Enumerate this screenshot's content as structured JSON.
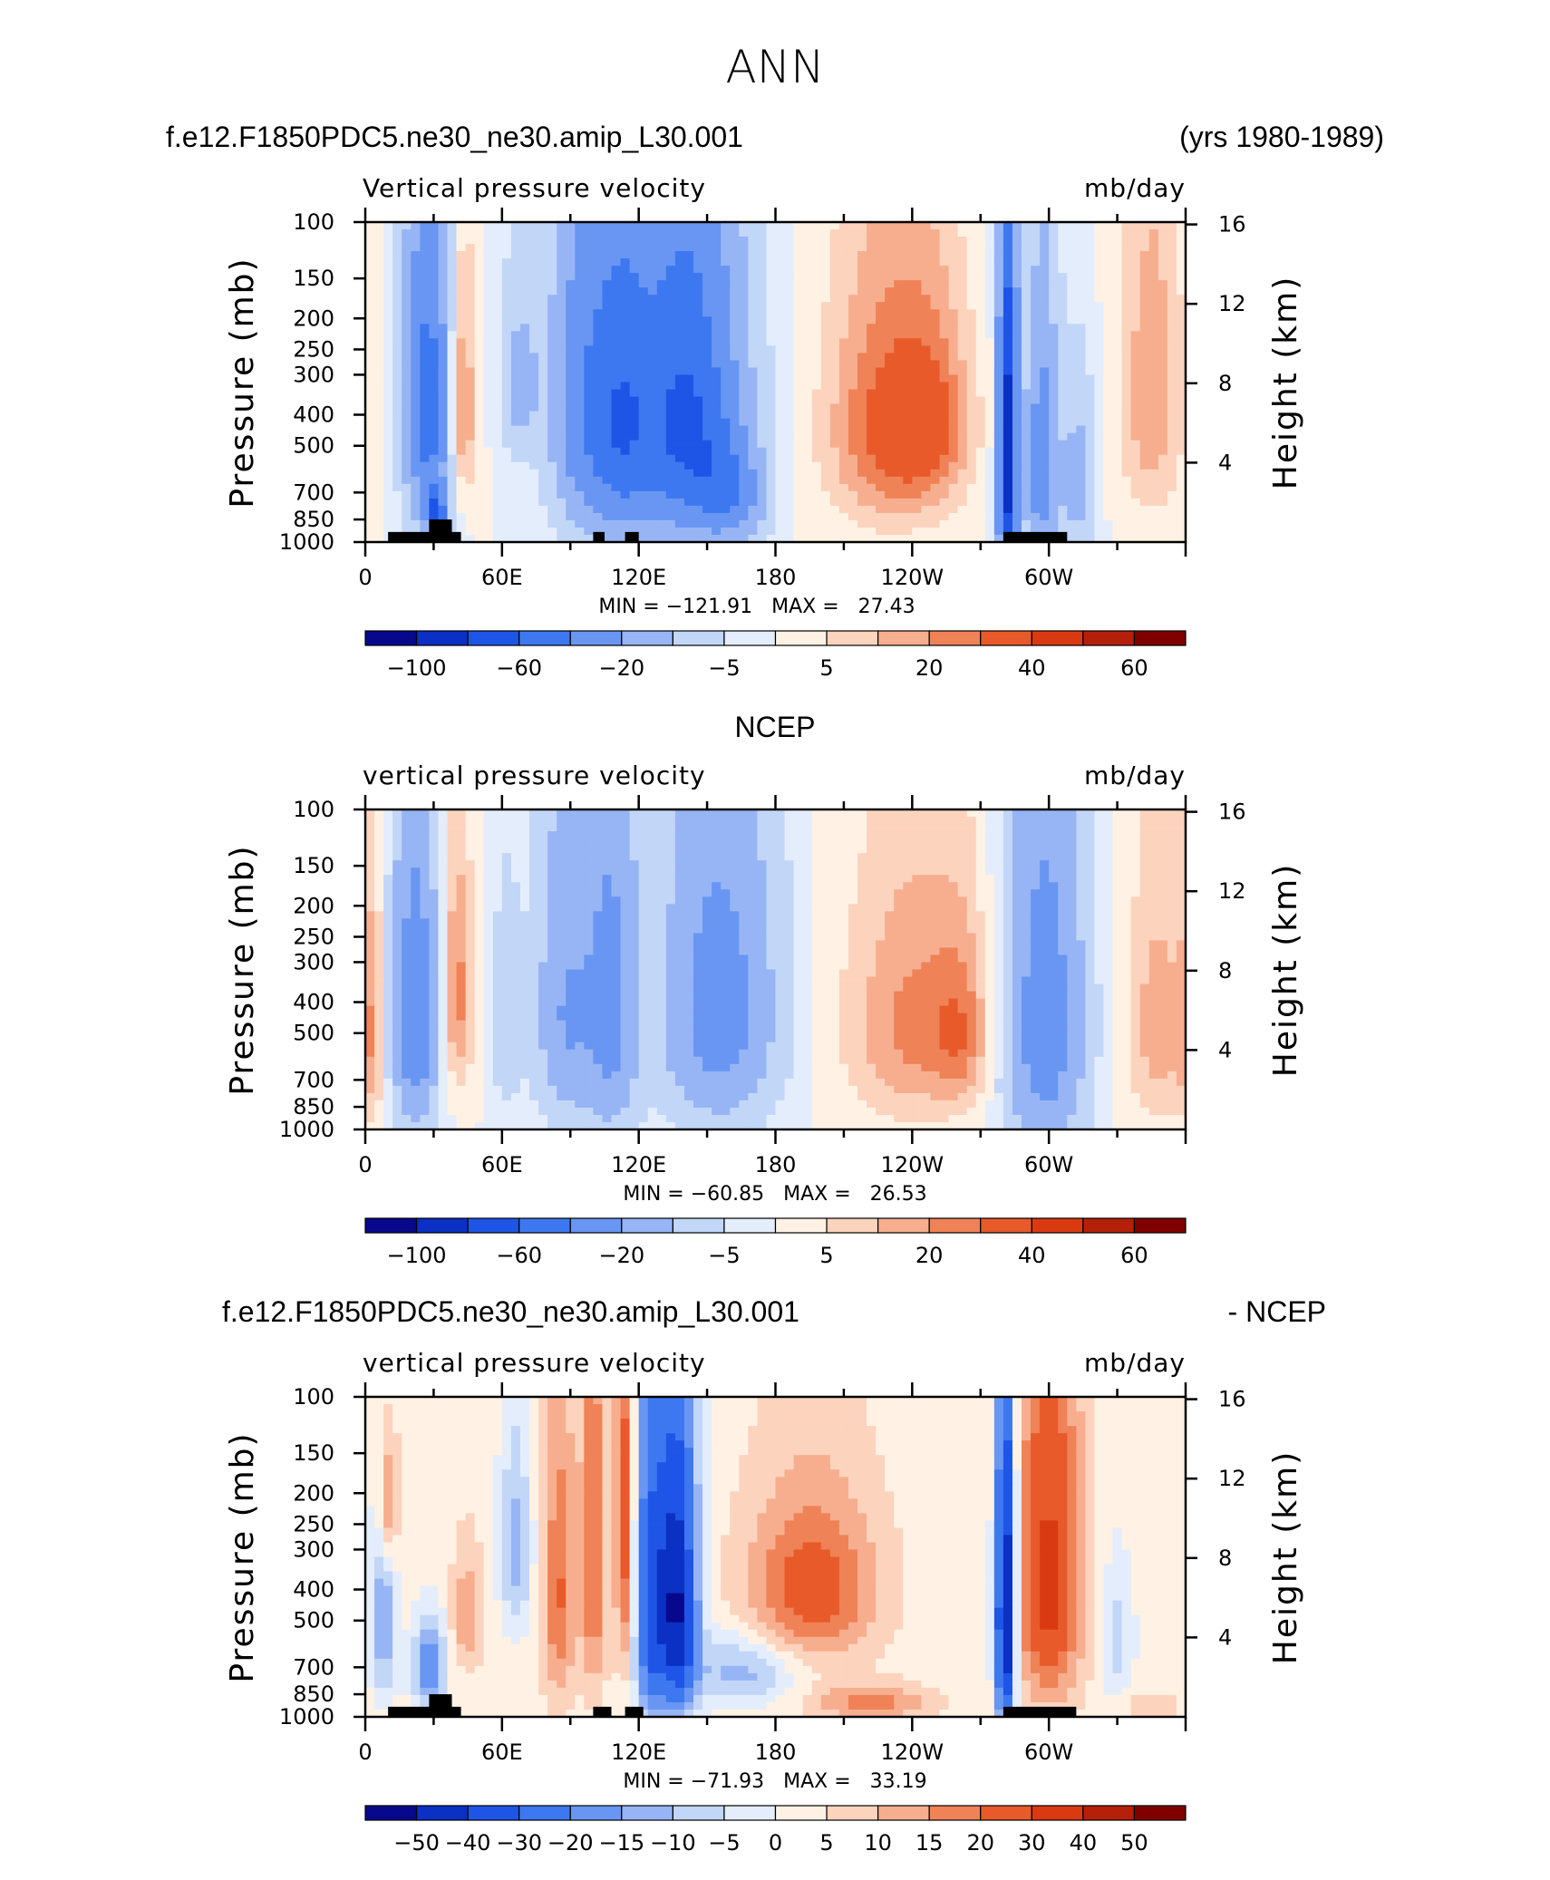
{
  "page": {
    "title": "ANN"
  },
  "colors": {
    "scale": [
      "#08088c",
      "#0a30c4",
      "#1e55e6",
      "#3d78f0",
      "#6896f2",
      "#97b5f4",
      "#c2d6f8",
      "#e4edfb",
      "#fff2e4",
      "#fcd3bd",
      "#f6ae8f",
      "#ef8256",
      "#e85a2a",
      "#d93a12",
      "#b5200a",
      "#800000"
    ]
  },
  "chart_data": [
    {
      "type": "heatmap",
      "name": "panel-model",
      "header_left": "f.e12.F1850PDC5.ne30_ne30.amip_L30.001",
      "header_right": "(yrs 1980-1989)",
      "subtitle_left": "Vertical pressure velocity",
      "subtitle_right": "mb/day",
      "ylabel": "Pressure (mb)",
      "ylabel_right": "Height (km)",
      "x_ticks": [
        "0",
        "60E",
        "120E",
        "180",
        "120W",
        "60W"
      ],
      "y_ticks": [
        "100",
        "150",
        "200",
        "250",
        "300",
        "400",
        "500",
        "700",
        "850",
        "1000"
      ],
      "y_right_ticks": [
        "16",
        "12",
        "8",
        "4"
      ],
      "stats": "MIN = −121.91   MAX =   27.43",
      "colorbar_labels": [
        "−100",
        "−60",
        "−20",
        "−5",
        "5",
        "20",
        "40",
        "60"
      ],
      "min": -121.91,
      "max": 27.43,
      "terrain": [
        [
          10,
          42,
          "low"
        ],
        [
          28,
          38,
          "high"
        ],
        [
          100,
          105,
          "low"
        ],
        [
          114,
          120,
          "low"
        ],
        [
          280,
          308,
          "low"
        ]
      ],
      "features": [
        {
          "lon": 28,
          "p": 380,
          "sw": 7,
          "sp": 320,
          "amp": -60
        },
        {
          "lon": 31,
          "p": 820,
          "sw": 3,
          "sp": 90,
          "amp": -60
        },
        {
          "lon": 41,
          "p": 380,
          "sw": 5,
          "sp": 220,
          "amp": 22
        },
        {
          "lon": 68,
          "p": 320,
          "sw": 6,
          "sp": 140,
          "amp": -20
        },
        {
          "lon": 95,
          "p": 380,
          "sw": 10,
          "sp": 330,
          "amp": -40
        },
        {
          "lon": 112,
          "p": 430,
          "sw": 9,
          "sp": 330,
          "amp": -45
        },
        {
          "lon": 140,
          "p": 420,
          "sw": 17,
          "sp": 330,
          "amp": -75
        },
        {
          "lon": 160,
          "p": 720,
          "sw": 10,
          "sp": 170,
          "amp": -35
        },
        {
          "lon": 232,
          "p": 440,
          "sw": 20,
          "sp": 280,
          "amp": 24
        },
        {
          "lon": 250,
          "p": 420,
          "sw": 10,
          "sp": 180,
          "amp": 10
        },
        {
          "lon": 282,
          "p": 560,
          "sw": 3,
          "sp": 420,
          "amp": -110
        },
        {
          "lon": 297,
          "p": 580,
          "sw": 5,
          "sp": 330,
          "amp": -45
        },
        {
          "lon": 313,
          "p": 650,
          "sw": 5,
          "sp": 260,
          "amp": -22
        },
        {
          "lon": 345,
          "p": 350,
          "sw": 10,
          "sp": 300,
          "amp": 14
        }
      ]
    },
    {
      "type": "heatmap",
      "name": "panel-ncep",
      "header_center": "NCEP",
      "subtitle_left": "vertical pressure velocity",
      "subtitle_right": "mb/day",
      "ylabel": "Pressure (mb)",
      "ylabel_right": "Height (km)",
      "x_ticks": [
        "0",
        "60E",
        "120E",
        "180",
        "120W",
        "60W"
      ],
      "y_ticks": [
        "100",
        "150",
        "200",
        "250",
        "300",
        "400",
        "500",
        "700",
        "850",
        "1000"
      ],
      "y_right_ticks": [
        "16",
        "12",
        "8",
        "4"
      ],
      "stats": "MIN = −60.85   MAX =   26.53",
      "colorbar_labels": [
        "−100",
        "−60",
        "−20",
        "−5",
        "5",
        "20",
        "40",
        "60"
      ],
      "min": -60.85,
      "max": 26.53,
      "terrain": [],
      "features": [
        {
          "lon": 3,
          "p": 500,
          "sw": 4,
          "sp": 300,
          "amp": 12
        },
        {
          "lon": 22,
          "p": 450,
          "sw": 7,
          "sp": 330,
          "amp": -45
        },
        {
          "lon": 40,
          "p": 380,
          "sw": 5,
          "sp": 230,
          "amp": 18
        },
        {
          "lon": 62,
          "p": 480,
          "sw": 5,
          "sp": 250,
          "amp": -12
        },
        {
          "lon": 88,
          "p": 430,
          "sw": 9,
          "sp": 320,
          "amp": -30
        },
        {
          "lon": 108,
          "p": 420,
          "sw": 8,
          "sp": 380,
          "amp": -35
        },
        {
          "lon": 155,
          "p": 420,
          "sw": 17,
          "sp": 330,
          "amp": -40
        },
        {
          "lon": 242,
          "p": 470,
          "sw": 22,
          "sp": 300,
          "amp": 17
        },
        {
          "lon": 262,
          "p": 500,
          "sw": 8,
          "sp": 200,
          "amp": 10
        },
        {
          "lon": 298,
          "p": 480,
          "sw": 12,
          "sp": 420,
          "amp": -42
        },
        {
          "lon": 348,
          "p": 480,
          "sw": 10,
          "sp": 320,
          "amp": 13
        }
      ]
    },
    {
      "type": "heatmap",
      "name": "panel-difference",
      "header_left": "f.e12.F1850PDC5.ne30_ne30.amip_L30.001",
      "header_right": "- NCEP",
      "subtitle_left": "vertical pressure velocity",
      "subtitle_right": "mb/day",
      "ylabel": "Pressure (mb)",
      "ylabel_right": "Height (km)",
      "x_ticks": [
        "0",
        "60E",
        "120E",
        "180",
        "120W",
        "60W"
      ],
      "y_ticks": [
        "100",
        "150",
        "200",
        "250",
        "300",
        "400",
        "500",
        "700",
        "850",
        "1000"
      ],
      "y_right_ticks": [
        "16",
        "12",
        "8",
        "4"
      ],
      "stats": "MIN = −71.93   MAX =   33.19",
      "colorbar_labels": [
        "−50",
        "−40",
        "−30",
        "−20",
        "−15",
        "−10",
        "−5",
        "0",
        "5",
        "10",
        "15",
        "20",
        "30",
        "40",
        "50"
      ],
      "min": -71.93,
      "max": 33.19,
      "terrain": [
        [
          10,
          42,
          "low"
        ],
        [
          28,
          38,
          "high"
        ],
        [
          100,
          108,
          "low"
        ],
        [
          114,
          122,
          "low"
        ],
        [
          280,
          312,
          "low"
        ]
      ],
      "features": [
        {
          "lon": 10,
          "p": 220,
          "sw": 3,
          "sp": 80,
          "amp": 20
        },
        {
          "lon": 8,
          "p": 500,
          "sw": 4,
          "sp": 250,
          "amp": -18
        },
        {
          "lon": 28,
          "p": 700,
          "sw": 5,
          "sp": 150,
          "amp": -25
        },
        {
          "lon": 45,
          "p": 480,
          "sw": 5,
          "sp": 140,
          "amp": 12
        },
        {
          "lon": 66,
          "p": 300,
          "sw": 5,
          "sp": 150,
          "amp": -15
        },
        {
          "lon": 85,
          "p": 420,
          "sw": 5,
          "sp": 300,
          "amp": 18
        },
        {
          "lon": 100,
          "p": 330,
          "sw": 4,
          "sp": 320,
          "amp": 18
        },
        {
          "lon": 114,
          "p": 260,
          "sw": 3,
          "sp": 300,
          "amp": 22
        },
        {
          "lon": 125,
          "p": 450,
          "sw": 5,
          "sp": 380,
          "amp": -35
        },
        {
          "lon": 137,
          "p": 450,
          "sw": 6,
          "sp": 330,
          "amp": -55
        },
        {
          "lon": 165,
          "p": 720,
          "sw": 15,
          "sp": 130,
          "amp": -15
        },
        {
          "lon": 196,
          "p": 400,
          "sw": 20,
          "sp": 170,
          "amp": 22
        },
        {
          "lon": 222,
          "p": 900,
          "sw": 18,
          "sp": 80,
          "amp": 15
        },
        {
          "lon": 281,
          "p": 480,
          "sw": 3,
          "sp": 380,
          "amp": -62
        },
        {
          "lon": 300,
          "p": 380,
          "sw": 10,
          "sp": 330,
          "amp": 28
        },
        {
          "lon": 330,
          "p": 580,
          "sw": 5,
          "sp": 200,
          "amp": -10
        },
        {
          "lon": 345,
          "p": 920,
          "sw": 10,
          "sp": 60,
          "amp": 6
        }
      ]
    }
  ]
}
